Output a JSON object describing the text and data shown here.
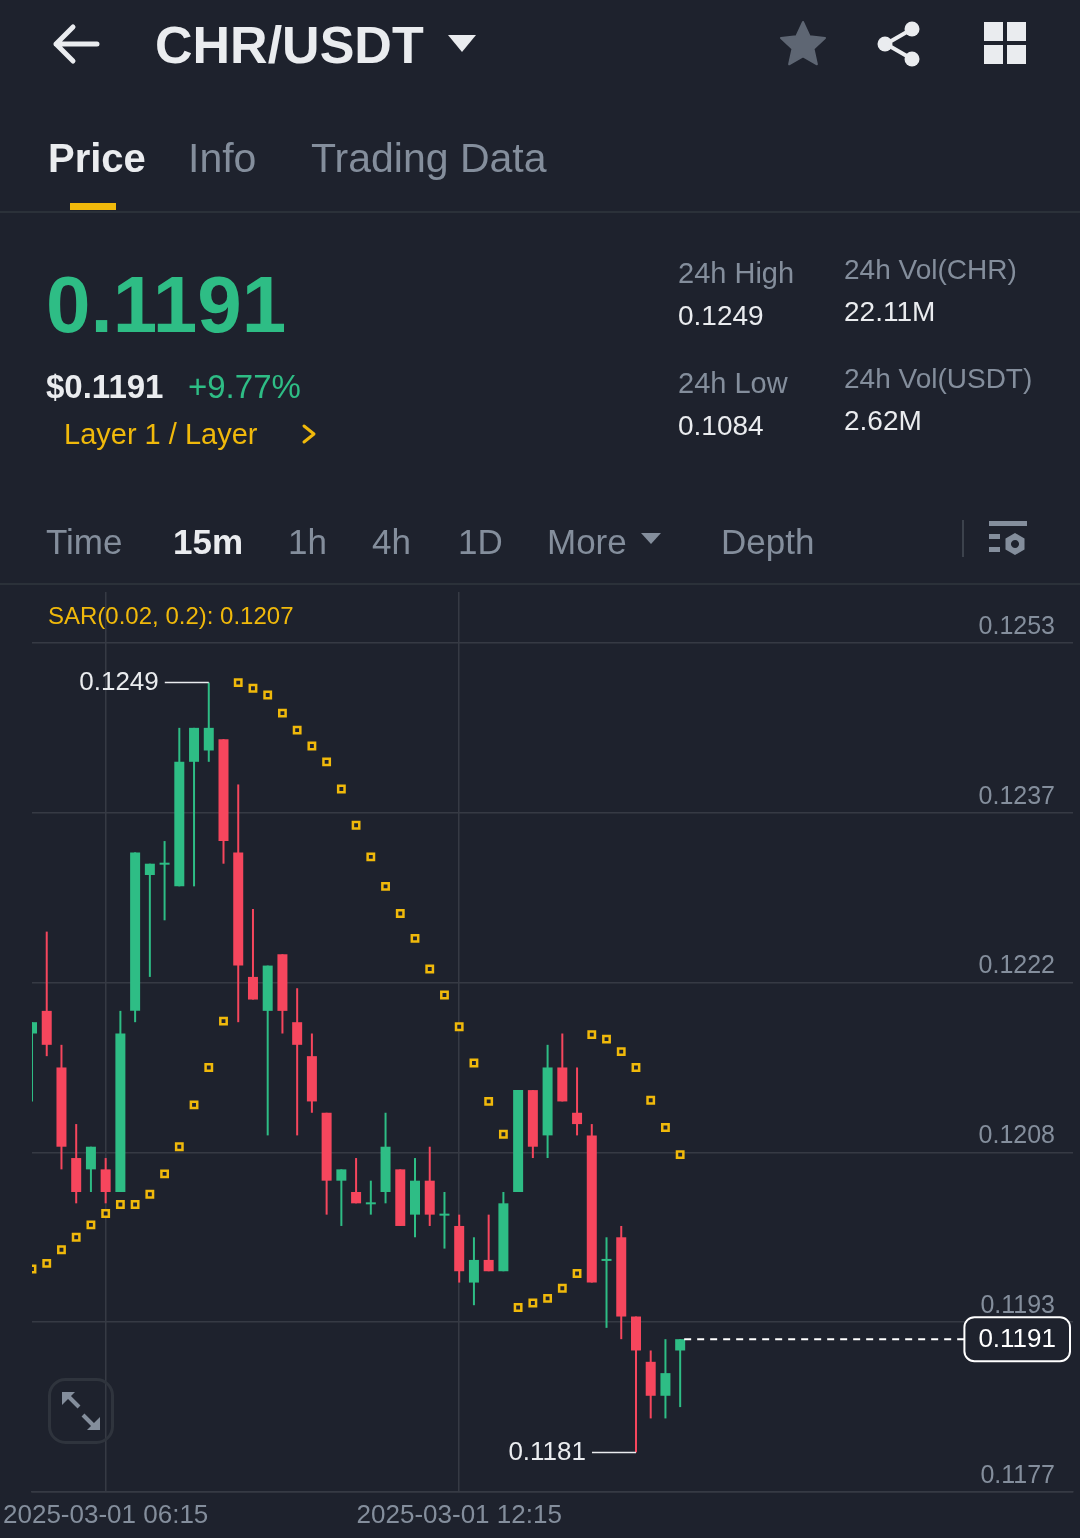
{
  "chart_data": [
    {
      "type": "other",
      "title": "CHR/USDT",
      "annotations": [
        "Price",
        "Info",
        "Trading Data",
        "0.1191",
        "$0.1191",
        "+9.77%",
        "Layer 1 / Layer",
        "24h High",
        "0.1249",
        "24h Low",
        "0.1084",
        "24h Vol(CHR)",
        "22.11M",
        "24h Vol(USDT)",
        "2.62M",
        "Time",
        "15m",
        "1h",
        "4h",
        "1D",
        "More",
        "Depth"
      ]
    },
    {
      "type": "candlestick",
      "x": [
        "2025-03-01T05:00",
        "2025-03-01T05:15",
        "2025-03-01T05:30",
        "2025-03-01T05:45",
        "2025-03-01T06:00",
        "2025-03-01T06:15",
        "2025-03-01T06:30",
        "2025-03-01T06:45",
        "2025-03-01T07:00",
        "2025-03-01T07:15",
        "2025-03-01T07:30",
        "2025-03-01T07:45",
        "2025-03-01T08:00",
        "2025-03-01T08:15",
        "2025-03-01T08:30",
        "2025-03-01T08:45",
        "2025-03-01T09:00",
        "2025-03-01T09:15",
        "2025-03-01T09:30",
        "2025-03-01T09:45",
        "2025-03-01T10:00",
        "2025-03-01T10:15",
        "2025-03-01T10:30",
        "2025-03-01T10:45",
        "2025-03-01T11:00",
        "2025-03-01T11:15",
        "2025-03-01T11:30",
        "2025-03-01T11:45",
        "2025-03-01T12:00",
        "2025-03-01T12:15",
        "2025-03-01T12:30",
        "2025-03-01T12:45",
        "2025-03-01T13:00",
        "2025-03-01T13:15",
        "2025-03-01T13:30",
        "2025-03-01T13:45",
        "2025-03-01T14:00",
        "2025-03-01T14:15",
        "2025-03-01T14:30",
        "2025-03-01T14:45",
        "2025-03-01T15:00",
        "2025-03-01T15:15",
        "2025-03-01T15:30",
        "2025-03-01T15:45",
        "2025-03-01T16:00"
      ],
      "xlim": [
        "2025-03-01T05:00",
        "2025-03-01T22:40"
      ],
      "xticks": [
        {
          "value": "2025-03-01T06:15",
          "label": "2025-03-01 06:15"
        },
        {
          "value": "2025-03-01T12:15",
          "label": "2025-03-01 12:15"
        }
      ],
      "ylim": [
        0.11775,
        0.1257
      ],
      "yticks": [
        {
          "value": 0.12525,
          "label": "0.1253"
        },
        {
          "value": 0.12375,
          "label": "0.1237"
        },
        {
          "value": 0.12225,
          "label": "0.1222"
        },
        {
          "value": 0.12075,
          "label": "0.1208"
        },
        {
          "value": 0.11925,
          "label": "0.1193"
        },
        {
          "value": 0.11775,
          "label": "0.1177"
        }
      ],
      "grid": true,
      "legend": "top left",
      "series": [
        {
          "type": "candlestick",
          "ohlc": [
            [
              0.1218,
              0.1219,
              0.1212,
              0.1219
            ],
            [
              0.122,
              0.1227,
              0.1216,
              0.1217
            ],
            [
              0.1215,
              0.1217,
              0.1206,
              0.1208
            ],
            [
              0.1207,
              0.121,
              0.1203,
              0.1204
            ],
            [
              0.1206,
              0.1208,
              0.1204,
              0.1208
            ],
            [
              0.1206,
              0.1207,
              0.1203,
              0.1204
            ],
            [
              0.1204,
              0.122,
              0.1204,
              0.1218
            ],
            [
              0.122,
              0.1234,
              0.1219,
              0.1234
            ],
            [
              0.1232,
              0.1233,
              0.1223,
              0.1233
            ],
            [
              0.1233,
              0.1235,
              0.1228,
              0.1233
            ],
            [
              0.1231,
              0.1245,
              0.1231,
              0.1242
            ],
            [
              0.1242,
              0.1245,
              0.1231,
              0.1245
            ],
            [
              0.1243,
              0.1249,
              0.1242,
              0.1245
            ],
            [
              0.1244,
              0.1244,
              0.1233,
              0.1235
            ],
            [
              0.1234,
              0.124,
              0.1219,
              0.1224
            ],
            [
              0.1223,
              0.1229,
              0.1221,
              0.1221
            ],
            [
              0.122,
              0.1224,
              0.1209,
              0.1224
            ],
            [
              0.1225,
              0.1225,
              0.1218,
              0.122
            ],
            [
              0.1219,
              0.1222,
              0.1209,
              0.1217
            ],
            [
              0.1216,
              0.1218,
              0.1211,
              0.1212
            ],
            [
              0.1211,
              0.1211,
              0.1202,
              0.1205
            ],
            [
              0.1205,
              0.1206,
              0.1201,
              0.1206
            ],
            [
              0.1204,
              0.1207,
              0.1203,
              0.1203
            ],
            [
              0.1203,
              0.1205,
              0.1202,
              0.1203
            ],
            [
              0.1204,
              0.1211,
              0.1203,
              0.1208
            ],
            [
              0.1206,
              0.1206,
              0.1201,
              0.1201
            ],
            [
              0.1202,
              0.1207,
              0.12,
              0.1205
            ],
            [
              0.1205,
              0.1208,
              0.1201,
              0.1202
            ],
            [
              0.1202,
              0.1204,
              0.1199,
              0.1202
            ],
            [
              0.1201,
              0.1202,
              0.1196,
              0.1197
            ],
            [
              0.1196,
              0.12,
              0.1194,
              0.1198
            ],
            [
              0.1198,
              0.1202,
              0.1197,
              0.1197
            ],
            [
              0.1197,
              0.1204,
              0.1197,
              0.1203
            ],
            [
              0.1204,
              0.1213,
              0.1204,
              0.1213
            ],
            [
              0.1213,
              0.1213,
              0.1207,
              0.1208
            ],
            [
              0.1209,
              0.1217,
              0.1207,
              0.1215
            ],
            [
              0.1215,
              0.1218,
              0.1212,
              0.1212
            ],
            [
              0.1211,
              0.1215,
              0.1209,
              0.121
            ],
            [
              0.1209,
              0.121,
              0.1196,
              0.1196
            ],
            [
              0.1198,
              0.12,
              0.1192,
              0.1198
            ],
            [
              0.12,
              0.1201,
              0.1191,
              0.1193
            ],
            [
              0.1193,
              0.1193,
              0.1181,
              0.119
            ],
            [
              0.1189,
              0.119,
              0.1184,
              0.1186
            ],
            [
              0.1186,
              0.1191,
              0.1184,
              0.1188
            ],
            [
              0.119,
              0.1191,
              0.1185,
              0.1191
            ]
          ],
          "colors": [
            "#2ebd85",
            "#f6465d",
            "#f6465d",
            "#f6465d",
            "#2ebd85",
            "#f6465d",
            "#2ebd85",
            "#2ebd85",
            "#2ebd85",
            "#2ebd85",
            "#2ebd85",
            "#2ebd85",
            "#2ebd85",
            "#f6465d",
            "#f6465d",
            "#f6465d",
            "#2ebd85",
            "#f6465d",
            "#f6465d",
            "#f6465d",
            "#f6465d",
            "#2ebd85",
            "#f6465d",
            "#2ebd85",
            "#2ebd85",
            "#f6465d",
            "#2ebd85",
            "#f6465d",
            "#2ebd85",
            "#f6465d",
            "#2ebd85",
            "#f6465d",
            "#2ebd85",
            "#2ebd85",
            "#f6465d",
            "#2ebd85",
            "#f6465d",
            "#f6465d",
            "#f6465d",
            "#2ebd85",
            "#f6465d",
            "#f6465d",
            "#f6465d",
            "#2ebd85",
            "#2ebd85"
          ]
        },
        {
          "type": "scatter",
          "name": "SAR(0.02, 0.2): 0.1207",
          "color": "#f0b90b",
          "marker": "square",
          "values": [
            0.11972,
            0.11977,
            0.11989,
            0.12,
            0.12011,
            0.12021,
            0.12029,
            0.12029,
            0.12038,
            0.12056,
            0.1208,
            0.12117,
            0.1215,
            0.12191,
            0.1249,
            0.12485,
            0.12479,
            0.12463,
            0.12448,
            0.12434,
            0.1242,
            0.12396,
            0.12364,
            0.12336,
            0.1231,
            0.12286,
            0.12264,
            0.12237,
            0.12214,
            0.12186,
            0.12154,
            0.1212,
            0.12091,
            0.11938,
            0.11942,
            0.11946,
            0.11955,
            0.11968,
            0.12179,
            0.12175,
            0.12164,
            0.1215,
            0.12121,
            0.12097,
            0.12073
          ]
        }
      ],
      "annotations": [
        {
          "text": "0.1249",
          "x": "2025-03-01T08:00",
          "y": 0.1249
        },
        {
          "text": "0.1181",
          "x": "2025-03-01T15:15",
          "y": 0.1181
        }
      ],
      "ref_lines": [
        {
          "axis": "y",
          "value": 0.1191,
          "label": "0.1191",
          "line_style": "dashed",
          "color": "#ffffff"
        }
      ]
    }
  ]
}
